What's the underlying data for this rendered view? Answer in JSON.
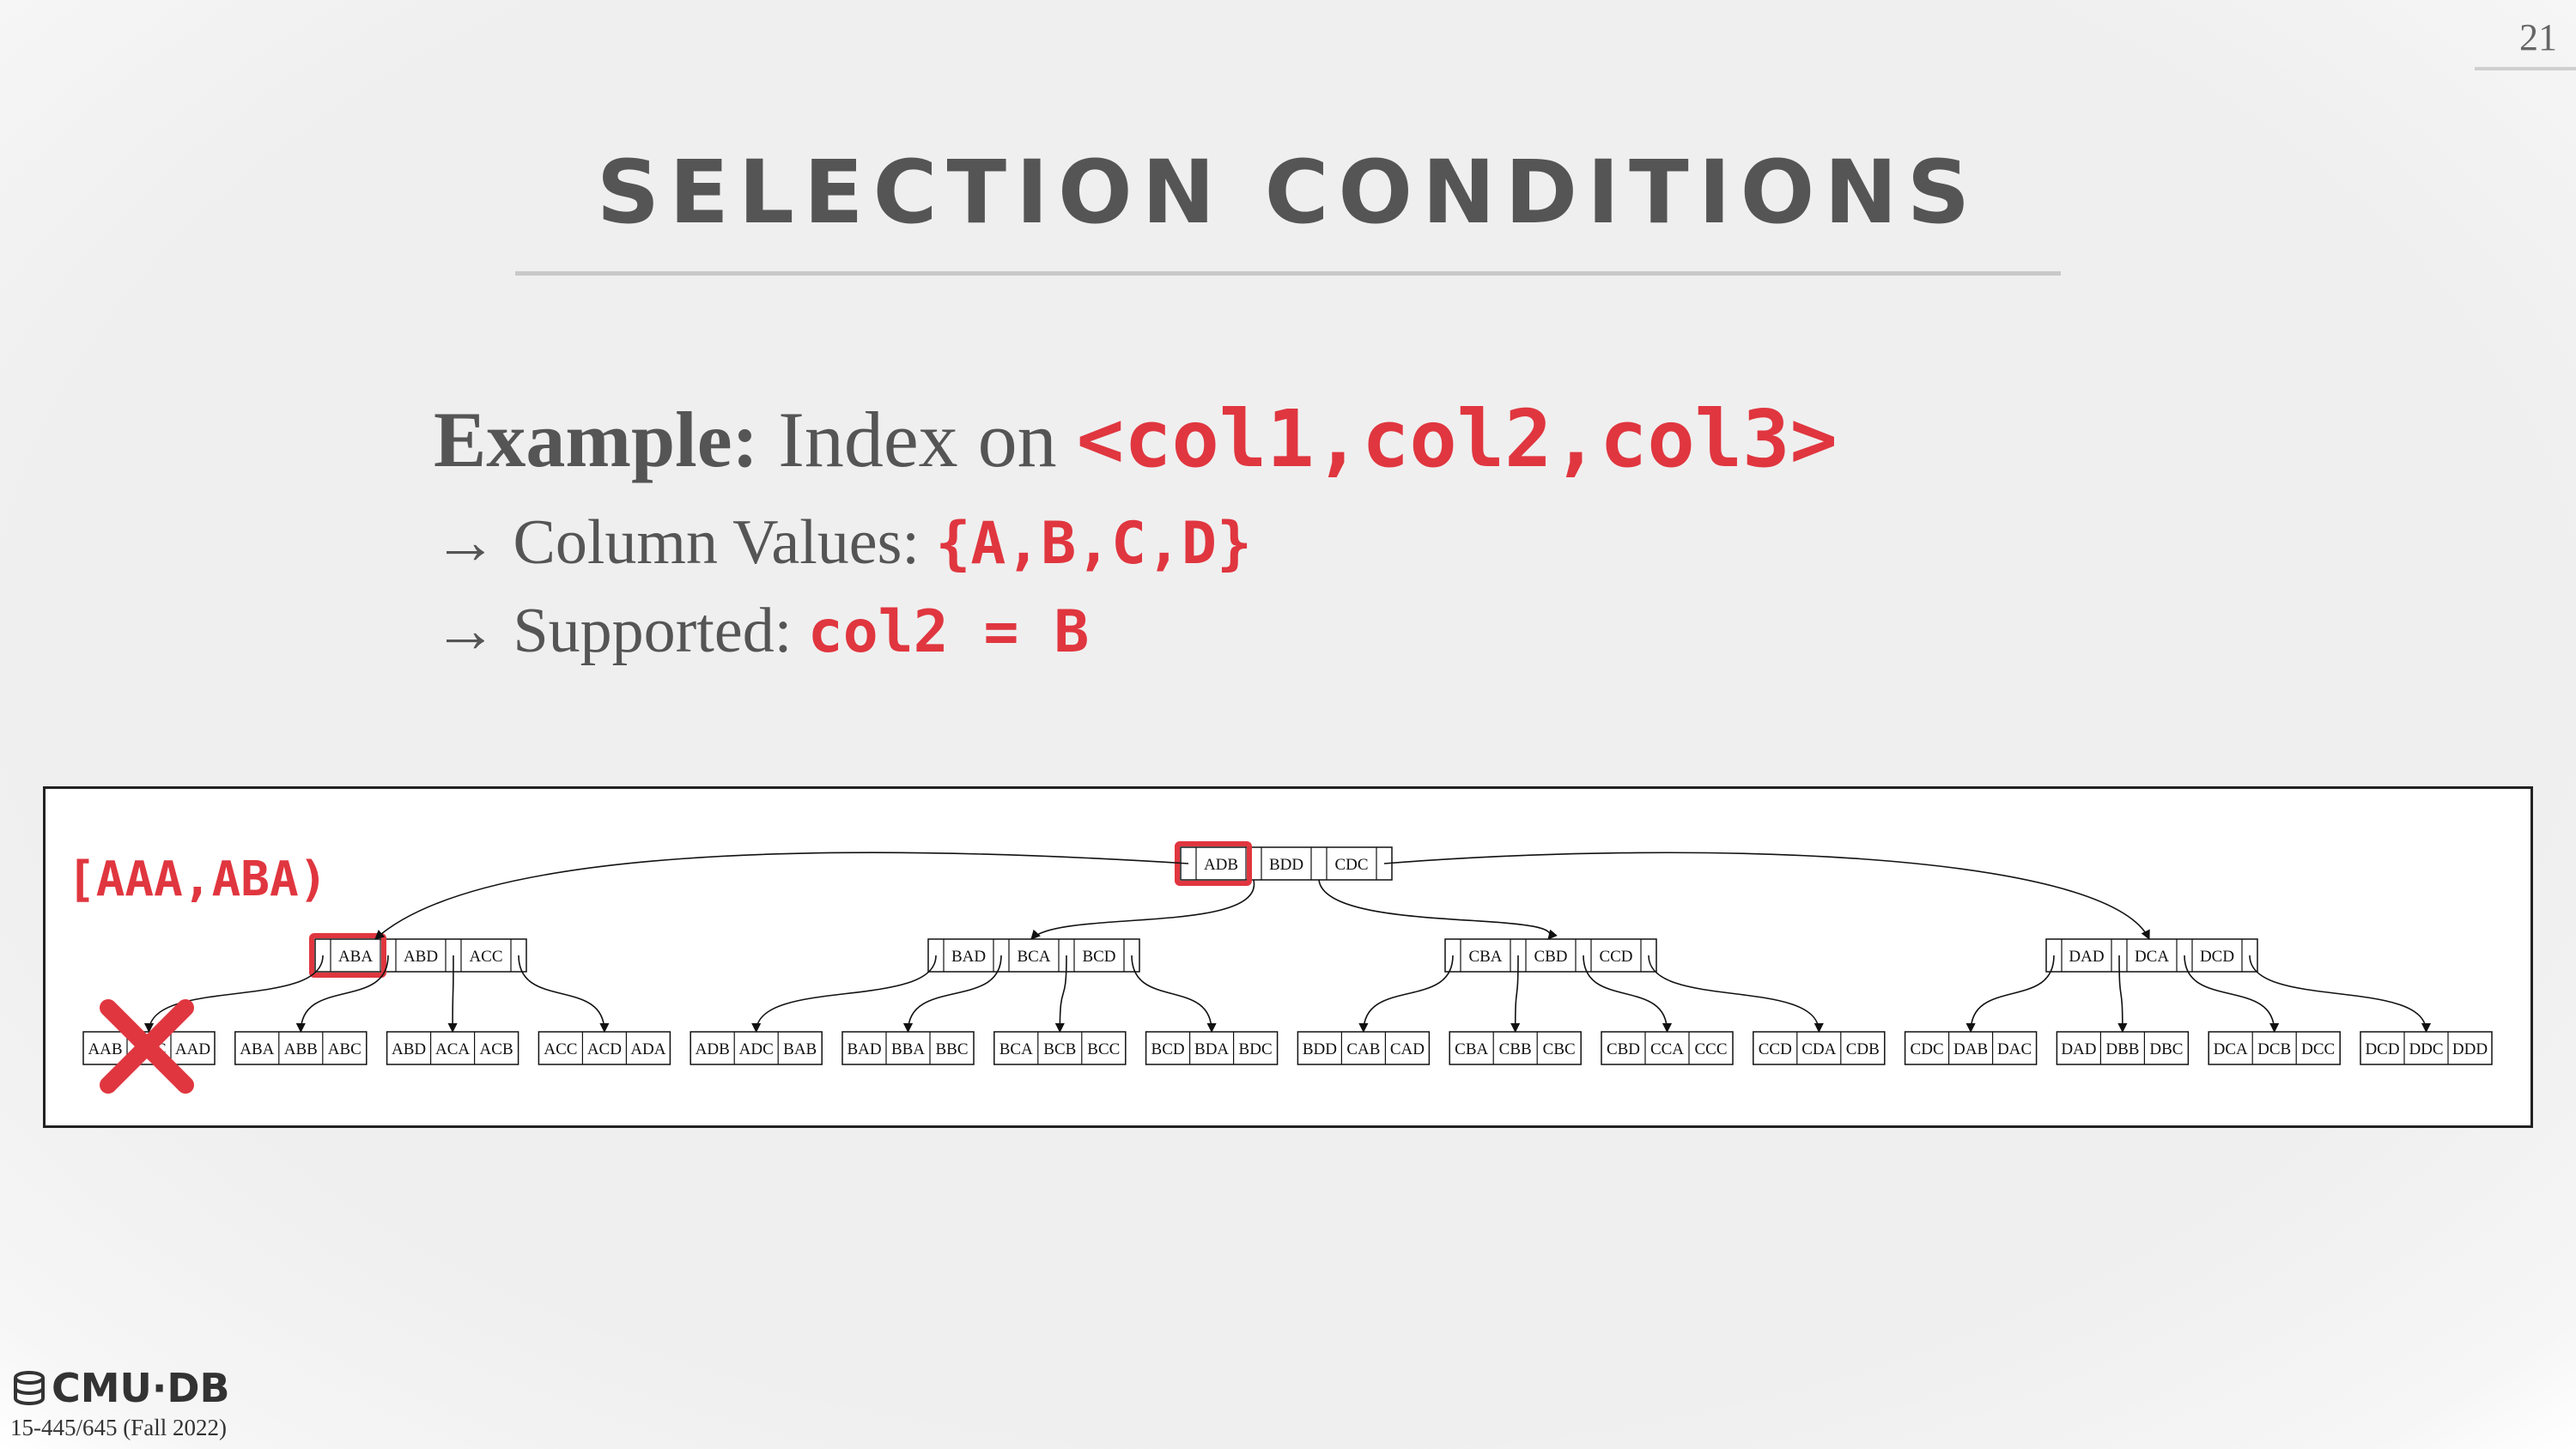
{
  "slide": {
    "page_number": "21",
    "title": "SELECTION CONDITIONS",
    "example_label": "Example:",
    "example_text": "Index on",
    "example_code": "<col1,col2,col3>",
    "bullets": [
      {
        "arrow": "→",
        "text": "Column Values:",
        "code": "{A,B,C,D}"
      },
      {
        "arrow": "→",
        "text": "Supported:",
        "code": "col2 = B"
      }
    ],
    "range_label": "[AAA,ABA)",
    "footer": {
      "logo": "CMU·DB",
      "course": "15-445/645 (Fall 2022)"
    }
  },
  "tree": {
    "root": [
      "ADB",
      "BDD",
      "CDC"
    ],
    "inner": [
      [
        "ABA",
        "ABD",
        "ACC"
      ],
      [
        "BAD",
        "BCA",
        "BCD"
      ],
      [
        "CBA",
        "CBD",
        "CCD"
      ],
      [
        "DAD",
        "DCA",
        "DCD"
      ]
    ],
    "leaves": [
      [
        "AAB",
        "AAC",
        "AAD"
      ],
      [
        "ABA",
        "ABB",
        "ABC"
      ],
      [
        "ABD",
        "ACA",
        "ACB"
      ],
      [
        "ACC",
        "ACD",
        "ADA"
      ],
      [
        "ADB",
        "ADC",
        "BAB"
      ],
      [
        "BAD",
        "BBA",
        "BBC"
      ],
      [
        "BCA",
        "BCB",
        "BCC"
      ],
      [
        "BCD",
        "BDA",
        "BDC"
      ],
      [
        "BDD",
        "CAB",
        "CAD"
      ],
      [
        "CBA",
        "CBB",
        "CBC"
      ],
      [
        "CBD",
        "CCA",
        "CCC"
      ],
      [
        "CCD",
        "CDA",
        "CDB"
      ],
      [
        "CDC",
        "DAB",
        "DAC"
      ],
      [
        "DAD",
        "DBB",
        "DBC"
      ],
      [
        "DCA",
        "DCB",
        "DCC"
      ],
      [
        "DCD",
        "DDC",
        "DDD"
      ]
    ],
    "highlight_color": "#e0363f"
  }
}
